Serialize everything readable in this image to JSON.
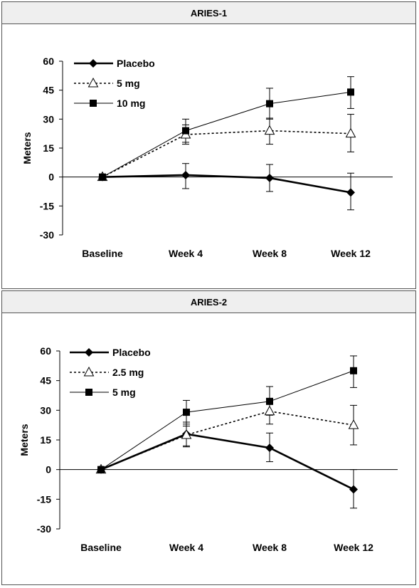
{
  "chart_data": [
    {
      "type": "line",
      "title": "ARIES-1",
      "ylabel": "Meters",
      "categories": [
        "Baseline",
        "Week 4",
        "Week 8",
        "Week 12"
      ],
      "ylim": [
        -30,
        60
      ],
      "yticks": [
        60,
        45,
        30,
        15,
        0,
        -15,
        -30
      ],
      "legend": "top-left",
      "series": [
        {
          "name": "Placebo",
          "style": "thick-solid",
          "marker": "diamond",
          "values": [
            0,
            1,
            -0.5,
            -8
          ],
          "err_low": [
            0,
            -6,
            -7.5,
            -17
          ],
          "err_high": [
            0,
            7,
            6.5,
            2
          ]
        },
        {
          "name": "5 mg",
          "style": "dotted",
          "marker": "open-triangle",
          "values": [
            0,
            22,
            24,
            22.5
          ],
          "err_low": [
            0,
            17,
            17,
            13
          ],
          "err_high": [
            0,
            27,
            30.5,
            32.5
          ]
        },
        {
          "name": "10 mg",
          "style": "thin-solid",
          "marker": "square",
          "values": [
            0,
            24,
            38,
            44
          ],
          "err_low": [
            0,
            18,
            30,
            35.5
          ],
          "err_high": [
            0,
            30,
            46,
            52
          ]
        }
      ]
    },
    {
      "type": "line",
      "title": "ARIES-2",
      "ylabel": "Meters",
      "categories": [
        "Baseline",
        "Week 4",
        "Week 8",
        "Week 12"
      ],
      "ylim": [
        -30,
        60
      ],
      "yticks": [
        60,
        45,
        30,
        15,
        0,
        -15,
        -30
      ],
      "legend": "top-left",
      "series": [
        {
          "name": "Placebo",
          "style": "thick-solid",
          "marker": "diamond",
          "values": [
            0,
            18,
            11,
            -10
          ],
          "err_low": [
            0,
            12,
            4,
            -19.5
          ],
          "err_high": [
            0,
            24,
            18.5,
            0
          ]
        },
        {
          "name": "2.5 mg",
          "style": "dotted",
          "marker": "open-triangle",
          "values": [
            0,
            17.5,
            29.5,
            22.5
          ],
          "err_low": [
            0,
            11.5,
            23,
            12.5
          ],
          "err_high": [
            0,
            23,
            36,
            32.5
          ]
        },
        {
          "name": "5 mg",
          "style": "thin-solid",
          "marker": "square",
          "values": [
            0,
            29,
            34.5,
            50
          ],
          "err_low": [
            0,
            22,
            27.5,
            41.5
          ],
          "err_high": [
            0,
            35,
            42,
            57.5
          ]
        }
      ]
    }
  ]
}
